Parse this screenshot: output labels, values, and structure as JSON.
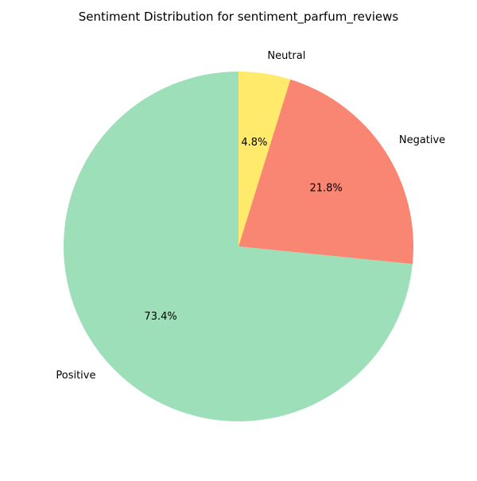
{
  "chart_data": {
    "type": "pie",
    "title": "Sentiment Distribution for sentiment_parfum_reviews",
    "start": "top",
    "direction": "clockwise",
    "slices": [
      {
        "label": "Neutral",
        "value": 4.8,
        "pct_label": "4.8%",
        "color": "#ffea6b"
      },
      {
        "label": "Negative",
        "value": 21.8,
        "pct_label": "21.8%",
        "color": "#f98672"
      },
      {
        "label": "Positive",
        "value": 73.4,
        "pct_label": "73.4%",
        "color": "#9ddfb9"
      }
    ]
  }
}
